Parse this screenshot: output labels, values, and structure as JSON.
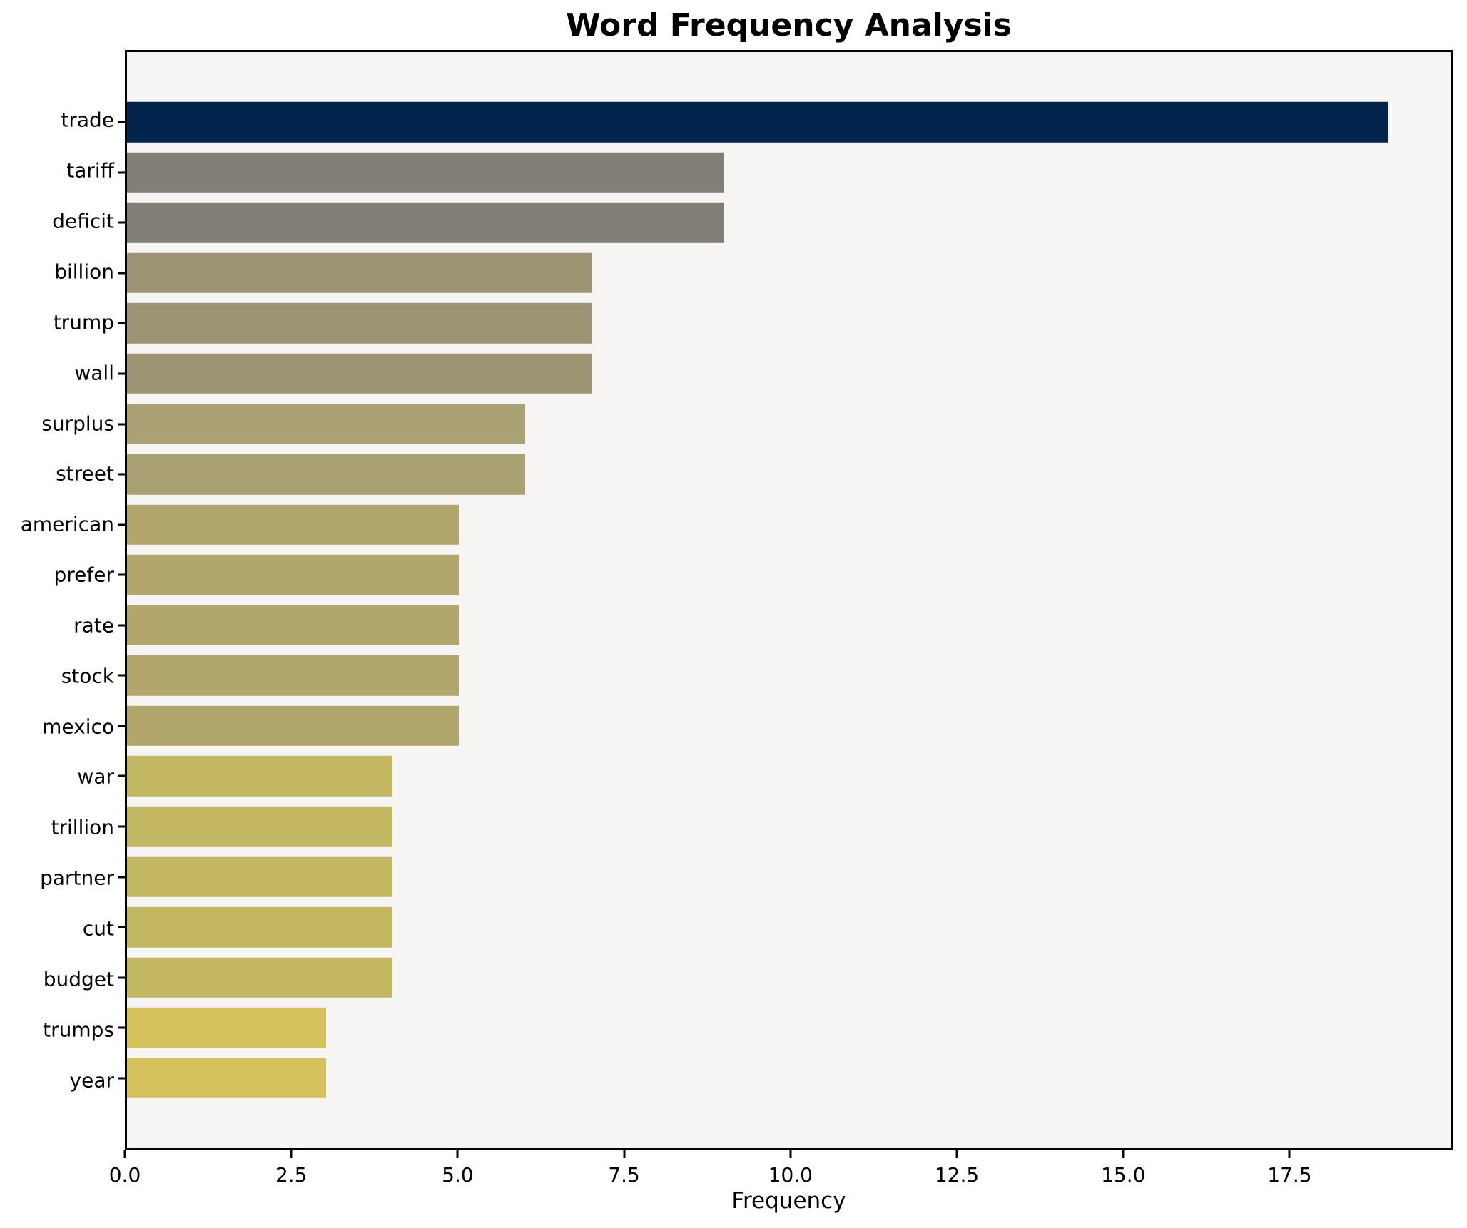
{
  "chart_data": {
    "type": "bar",
    "orientation": "horizontal",
    "title": "Word Frequency Analysis",
    "xlabel": "Frequency",
    "ylabel": "",
    "categories": [
      "trade",
      "tariff",
      "deficit",
      "billion",
      "trump",
      "wall",
      "surplus",
      "street",
      "american",
      "prefer",
      "rate",
      "stock",
      "mexico",
      "war",
      "trillion",
      "partner",
      "cut",
      "budget",
      "trumps",
      "year"
    ],
    "values": [
      19,
      9,
      9,
      7,
      7,
      7,
      6,
      6,
      5,
      5,
      5,
      5,
      5,
      4,
      4,
      4,
      4,
      4,
      3,
      3
    ],
    "bar_colors": [
      "#02234c",
      "#827d75",
      "#827d75",
      "#9c9473",
      "#9c9473",
      "#9c9473",
      "#a9a073",
      "#a9a073",
      "#b1a76d",
      "#b1a76d",
      "#b1a76d",
      "#b1a76d",
      "#b1a76d",
      "#c3b763",
      "#c3b763",
      "#c3b763",
      "#c3b763",
      "#c3b763",
      "#d4c15c",
      "#d4c15c"
    ],
    "xlim": [
      0,
      19.95
    ],
    "x_ticks": [
      0.0,
      2.5,
      5.0,
      7.5,
      10.0,
      12.5,
      15.0,
      17.5
    ],
    "x_tick_labels": [
      "0.0",
      "2.5",
      "5.0",
      "7.5",
      "10.0",
      "12.5",
      "15.0",
      "17.5"
    ],
    "grid": false,
    "legend": false,
    "colors": {
      "figure_bg": "#ffffff",
      "plot_bg": "#f6f5f4",
      "spine": "#000000",
      "text": "#000000",
      "colormap": "cividis"
    }
  }
}
